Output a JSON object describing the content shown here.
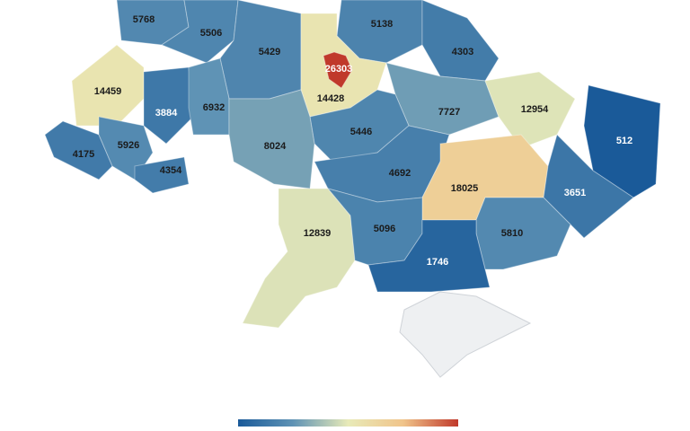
{
  "map": {
    "regions": [
      {
        "value": 5768
      },
      {
        "value": 5506
      },
      {
        "value": 5429
      },
      {
        "value": 5138
      },
      {
        "value": 4303
      },
      {
        "value": 14428
      },
      {
        "value": 26303
      },
      {
        "value": 14459
      },
      {
        "value": 3884
      },
      {
        "value": 6932
      },
      {
        "value": 7727
      },
      {
        "value": 12954
      },
      {
        "value": 512
      },
      {
        "value": 5446
      },
      {
        "value": 8024
      },
      {
        "value": 4175
      },
      {
        "value": 5926
      },
      {
        "value": 4354
      },
      {
        "value": 4692
      },
      {
        "value": 18025
      },
      {
        "value": 3651
      },
      {
        "value": 12839
      },
      {
        "value": 5096
      },
      {
        "value": 5810
      },
      {
        "value": 1746
      }
    ],
    "colorscale": [
      "#1a5a99",
      "#5f93b5",
      "#e8eab8",
      "#f0c48a",
      "#c0392b"
    ]
  }
}
